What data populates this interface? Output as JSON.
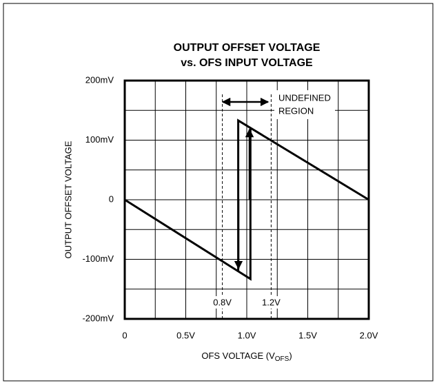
{
  "chart_data": {
    "type": "line",
    "title": [
      "OUTPUT OFFSET VOLTAGE",
      "vs. OFS INPUT VOLTAGE"
    ],
    "xlabel": {
      "text": "OFS VOLTAGE (V",
      "sub": "OFS",
      "end": ")"
    },
    "ylabel": "OUTPUT OFFSET VOLTAGE",
    "xlim": [
      0,
      2.0
    ],
    "ylim": [
      -200,
      200
    ],
    "xticks": [
      0,
      {
        "value": 0.5,
        "label": "0.5V"
      },
      {
        "value": 1.0,
        "label": "1.0V"
      },
      {
        "value": 1.5,
        "label": "1.5V"
      },
      {
        "value": 2.0,
        "label": "2.0V"
      }
    ],
    "yticks": [
      {
        "value": -200,
        "label": "-200mV"
      },
      {
        "value": -100,
        "label": "-100mV"
      },
      0,
      {
        "value": 100,
        "label": "100mV"
      },
      {
        "value": 200,
        "label": "200mV"
      }
    ],
    "xminor": [
      0.25,
      0.75,
      1.25,
      1.75
    ],
    "yminor": [
      -150,
      -50,
      50,
      150
    ],
    "grid": true,
    "series": [
      {
        "color": "#000000",
        "x": [
          0,
          1.03,
          1.03,
          null,
          0.93,
          0.93,
          2.0
        ],
        "values": [
          0,
          -133,
          121,
          null,
          -121,
          133,
          0
        ]
      }
    ],
    "vlines": [
      {
        "value": 0.8,
        "label": "0.8V"
      },
      {
        "value": 1.2,
        "label": "1.2V"
      }
    ],
    "annotation": [
      "UNDEFINED",
      "REGION"
    ]
  }
}
